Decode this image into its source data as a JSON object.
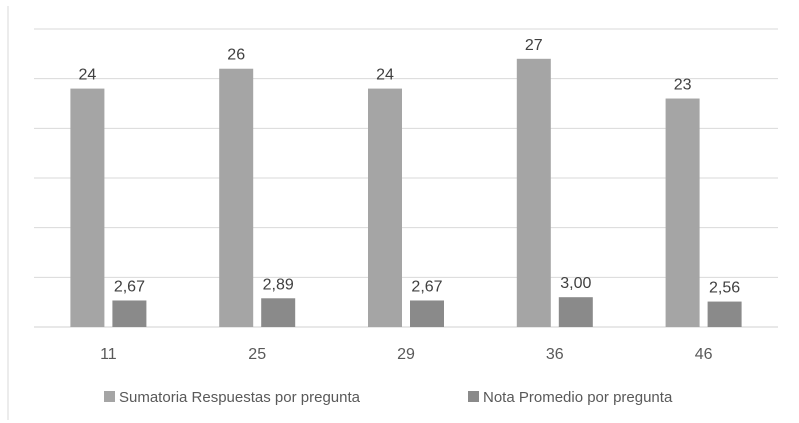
{
  "chart_data": {
    "type": "bar",
    "categories": [
      "11",
      "25",
      "29",
      "36",
      "46"
    ],
    "series": [
      {
        "name": "Sumatoria Respuestas por pregunta",
        "values": [
          24,
          26,
          24,
          27,
          23
        ],
        "labels": [
          "24",
          "26",
          "24",
          "27",
          "23"
        ],
        "color": "#a5a5a5"
      },
      {
        "name": "Nota Promedio por pregunta",
        "values": [
          2.67,
          2.89,
          2.67,
          3.0,
          2.56
        ],
        "labels": [
          "2,67",
          "2,89",
          "2,67",
          "3,00",
          "2,56"
        ],
        "color": "#8a8a8a"
      }
    ],
    "ylim": [
      0,
      30
    ],
    "grid": true,
    "legend": "bottom",
    "title": "",
    "xlabel": "",
    "ylabel": ""
  }
}
